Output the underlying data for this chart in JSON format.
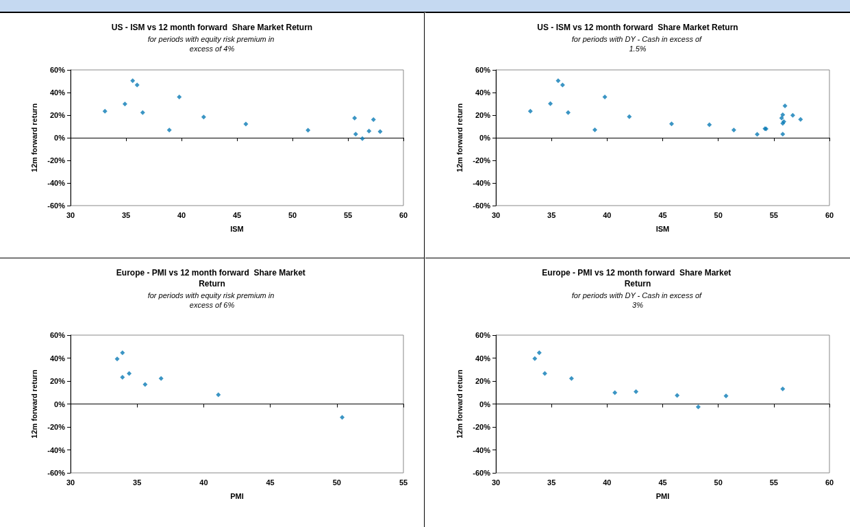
{
  "chart_data": [
    {
      "type": "scatter",
      "title": "US - ISM vs 12 month forward  Share Market Return",
      "subtitle": "for periods with equity risk premium in excess of 4%",
      "xlabel": "ISM",
      "ylabel": "12m forward return",
      "color": "#0a7ab5",
      "marker": "diamond",
      "x": [
        33.1,
        34.9,
        35.6,
        36.0,
        36.5,
        38.9,
        39.8,
        42.0,
        45.8,
        51.4,
        55.6,
        55.7,
        56.3,
        56.9,
        57.3,
        57.9
      ],
      "values": [
        23.5,
        29.9,
        50.5,
        46.6,
        22.3,
        6.8,
        36.0,
        18.4,
        12.1,
        6.6,
        17.4,
        3.2,
        -0.8,
        5.9,
        16.1,
        5.5
      ],
      "xlim": [
        30,
        60
      ],
      "xticks": [
        30,
        35,
        40,
        45,
        50,
        55,
        60
      ],
      "ylim": [
        -60,
        60
      ],
      "yticks": [
        {
          "value": -60,
          "label": "-60%"
        },
        {
          "value": -40,
          "label": "-40%"
        },
        {
          "value": -20,
          "label": "-20%"
        },
        {
          "value": 0,
          "label": "0%"
        },
        {
          "value": 20,
          "label": "20%"
        },
        {
          "value": 40,
          "label": "40%"
        },
        {
          "value": 60,
          "label": "60%"
        }
      ]
    },
    {
      "type": "scatter",
      "title": "US - ISM vs 12 month forward  Share Market Return",
      "subtitle": "for periods with DY - Cash in excess of 1.5%",
      "xlabel": "ISM",
      "ylabel": "12m forward return",
      "color": "#0a7ab5",
      "marker": "diamond",
      "x": [
        33.1,
        34.9,
        35.6,
        36.0,
        36.5,
        38.9,
        39.8,
        42.0,
        45.8,
        49.2,
        51.4,
        53.5,
        54.2,
        54.3,
        55.7,
        55.8,
        55.8,
        55.9,
        55.8,
        56.0,
        56.7,
        57.4
      ],
      "values": [
        23.5,
        30.1,
        50.4,
        46.7,
        22.2,
        7.0,
        36.1,
        18.6,
        12.2,
        11.5,
        6.8,
        3.0,
        8.1,
        7.9,
        17.5,
        20.3,
        12.8,
        14.3,
        3.2,
        28.2,
        19.8,
        16.2
      ],
      "xlim": [
        30,
        60
      ],
      "xticks": [
        30,
        35,
        40,
        45,
        50,
        55,
        60
      ],
      "ylim": [
        -60,
        60
      ],
      "yticks": [
        {
          "value": -60,
          "label": "-60%"
        },
        {
          "value": -40,
          "label": "-40%"
        },
        {
          "value": -20,
          "label": "-20%"
        },
        {
          "value": 0,
          "label": "0%"
        },
        {
          "value": 20,
          "label": "20%"
        },
        {
          "value": 40,
          "label": "40%"
        },
        {
          "value": 60,
          "label": "60%"
        }
      ]
    },
    {
      "type": "scatter",
      "title": "Europe - PMI vs 12 month forward  Share Market Return",
      "subtitle": "for periods with equity risk premium in excess of 6%",
      "xlabel": "PMI",
      "ylabel": "12m forward return",
      "color": "#0a7ab5",
      "marker": "diamond",
      "x": [
        33.5,
        33.9,
        33.9,
        34.4,
        35.6,
        36.8,
        41.1,
        50.4
      ],
      "values": [
        39.3,
        44.7,
        23.3,
        26.5,
        17.0,
        22.2,
        8.0,
        -11.7
      ],
      "xlim": [
        30,
        55
      ],
      "xticks": [
        30,
        35,
        40,
        45,
        50,
        55
      ],
      "ylim": [
        -60,
        60
      ],
      "yticks": [
        {
          "value": -60,
          "label": "-60%"
        },
        {
          "value": -40,
          "label": "-40%"
        },
        {
          "value": -20,
          "label": "-20%"
        },
        {
          "value": 0,
          "label": "0%"
        },
        {
          "value": 20,
          "label": "20%"
        },
        {
          "value": 40,
          "label": "40%"
        },
        {
          "value": 60,
          "label": "60%"
        }
      ]
    },
    {
      "type": "scatter",
      "title": "Europe - PMI vs 12 month forward  Share Market Return",
      "subtitle": "for periods with DY - Cash in excess of 3%",
      "xlabel": "PMI",
      "ylabel": "12m forward return",
      "color": "#0a7ab5",
      "marker": "diamond",
      "x": [
        33.5,
        33.9,
        34.4,
        36.8,
        40.7,
        42.6,
        46.3,
        48.2,
        50.7,
        55.8
      ],
      "values": [
        39.5,
        44.7,
        26.6,
        22.2,
        9.8,
        10.7,
        7.4,
        -2.6,
        7.0,
        13.1
      ],
      "xlim": [
        30,
        60
      ],
      "xticks": [
        30,
        35,
        40,
        45,
        50,
        55,
        60
      ],
      "ylim": [
        -60,
        60
      ],
      "yticks": [
        {
          "value": -60,
          "label": "-60%"
        },
        {
          "value": -40,
          "label": "-40%"
        },
        {
          "value": -20,
          "label": "-20%"
        },
        {
          "value": 0,
          "label": "0%"
        },
        {
          "value": 20,
          "label": "20%"
        },
        {
          "value": 40,
          "label": "40%"
        },
        {
          "value": 60,
          "label": "60%"
        }
      ]
    }
  ]
}
